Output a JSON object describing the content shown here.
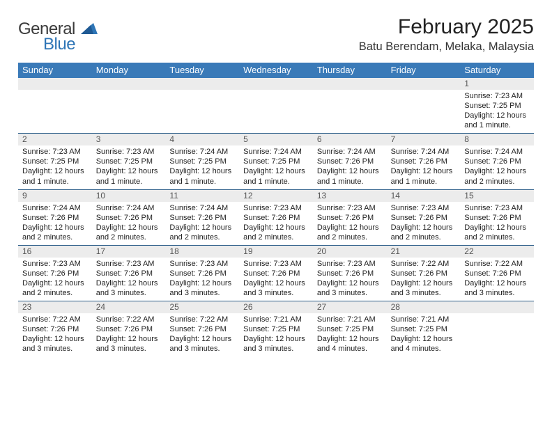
{
  "logo": {
    "general": "General",
    "blue": "Blue"
  },
  "title": "February 2025",
  "location": "Batu Berendam, Melaka, Malaysia",
  "colors": {
    "header_bg": "#3a7ab8",
    "header_text": "#ffffff",
    "daynum_bg": "#ececec",
    "week_border": "#2e5f8a",
    "logo_blue": "#2e75b6",
    "text": "#222222"
  },
  "day_headers": [
    "Sunday",
    "Monday",
    "Tuesday",
    "Wednesday",
    "Thursday",
    "Friday",
    "Saturday"
  ],
  "weeks": [
    {
      "nums": [
        "",
        "",
        "",
        "",
        "",
        "",
        "1"
      ],
      "cells": [
        "",
        "",
        "",
        "",
        "",
        "",
        "Sunrise: 7:23 AM\nSunset: 7:25 PM\nDaylight: 12 hours and 1 minute."
      ]
    },
    {
      "nums": [
        "2",
        "3",
        "4",
        "5",
        "6",
        "7",
        "8"
      ],
      "cells": [
        "Sunrise: 7:23 AM\nSunset: 7:25 PM\nDaylight: 12 hours and 1 minute.",
        "Sunrise: 7:23 AM\nSunset: 7:25 PM\nDaylight: 12 hours and 1 minute.",
        "Sunrise: 7:24 AM\nSunset: 7:25 PM\nDaylight: 12 hours and 1 minute.",
        "Sunrise: 7:24 AM\nSunset: 7:25 PM\nDaylight: 12 hours and 1 minute.",
        "Sunrise: 7:24 AM\nSunset: 7:26 PM\nDaylight: 12 hours and 1 minute.",
        "Sunrise: 7:24 AM\nSunset: 7:26 PM\nDaylight: 12 hours and 1 minute.",
        "Sunrise: 7:24 AM\nSunset: 7:26 PM\nDaylight: 12 hours and 2 minutes."
      ]
    },
    {
      "nums": [
        "9",
        "10",
        "11",
        "12",
        "13",
        "14",
        "15"
      ],
      "cells": [
        "Sunrise: 7:24 AM\nSunset: 7:26 PM\nDaylight: 12 hours and 2 minutes.",
        "Sunrise: 7:24 AM\nSunset: 7:26 PM\nDaylight: 12 hours and 2 minutes.",
        "Sunrise: 7:24 AM\nSunset: 7:26 PM\nDaylight: 12 hours and 2 minutes.",
        "Sunrise: 7:23 AM\nSunset: 7:26 PM\nDaylight: 12 hours and 2 minutes.",
        "Sunrise: 7:23 AM\nSunset: 7:26 PM\nDaylight: 12 hours and 2 minutes.",
        "Sunrise: 7:23 AM\nSunset: 7:26 PM\nDaylight: 12 hours and 2 minutes.",
        "Sunrise: 7:23 AM\nSunset: 7:26 PM\nDaylight: 12 hours and 2 minutes."
      ]
    },
    {
      "nums": [
        "16",
        "17",
        "18",
        "19",
        "20",
        "21",
        "22"
      ],
      "cells": [
        "Sunrise: 7:23 AM\nSunset: 7:26 PM\nDaylight: 12 hours and 2 minutes.",
        "Sunrise: 7:23 AM\nSunset: 7:26 PM\nDaylight: 12 hours and 3 minutes.",
        "Sunrise: 7:23 AM\nSunset: 7:26 PM\nDaylight: 12 hours and 3 minutes.",
        "Sunrise: 7:23 AM\nSunset: 7:26 PM\nDaylight: 12 hours and 3 minutes.",
        "Sunrise: 7:23 AM\nSunset: 7:26 PM\nDaylight: 12 hours and 3 minutes.",
        "Sunrise: 7:22 AM\nSunset: 7:26 PM\nDaylight: 12 hours and 3 minutes.",
        "Sunrise: 7:22 AM\nSunset: 7:26 PM\nDaylight: 12 hours and 3 minutes."
      ]
    },
    {
      "nums": [
        "23",
        "24",
        "25",
        "26",
        "27",
        "28",
        ""
      ],
      "cells": [
        "Sunrise: 7:22 AM\nSunset: 7:26 PM\nDaylight: 12 hours and 3 minutes.",
        "Sunrise: 7:22 AM\nSunset: 7:26 PM\nDaylight: 12 hours and 3 minutes.",
        "Sunrise: 7:22 AM\nSunset: 7:26 PM\nDaylight: 12 hours and 3 minutes.",
        "Sunrise: 7:21 AM\nSunset: 7:25 PM\nDaylight: 12 hours and 3 minutes.",
        "Sunrise: 7:21 AM\nSunset: 7:25 PM\nDaylight: 12 hours and 4 minutes.",
        "Sunrise: 7:21 AM\nSunset: 7:25 PM\nDaylight: 12 hours and 4 minutes.",
        ""
      ]
    }
  ]
}
